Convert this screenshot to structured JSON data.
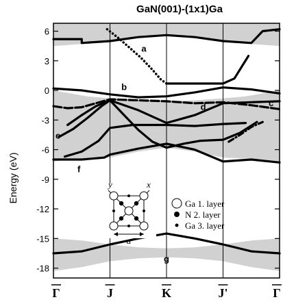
{
  "chart_data": {
    "type": "line",
    "title": "GaN(001)-(1x1)Ga",
    "ylabel": "Energy (eV)",
    "ylim": [
      -19,
      6.8
    ],
    "yticks": [
      -18,
      -15,
      -12,
      -9,
      -6,
      -3,
      0,
      3,
      6
    ],
    "kpoints": [
      {
        "label": "Γ",
        "x": 0
      },
      {
        "label": "J",
        "x": 1
      },
      {
        "label": "K",
        "x": 2
      },
      {
        "label": "J'",
        "x": 3
      },
      {
        "label": "Γ",
        "x": 4
      }
    ],
    "colors": {
      "bulk_projection": "#bdbdbd",
      "bands": "#000000"
    },
    "bulk_projection": [
      {
        "x": [
          0,
          0.5,
          1,
          1.5,
          2,
          2.5,
          3,
          3.5,
          4
        ],
        "lower": [
          4.5,
          4.7,
          5,
          5.4,
          5.6,
          5.4,
          5,
          4.7,
          4.5
        ],
        "upper": [
          6.8,
          6.8,
          6.8,
          6.8,
          6.8,
          6.8,
          6.8,
          6.8,
          6.8
        ]
      },
      {
        "x": [
          0,
          0.3,
          0.6,
          1,
          1.5,
          2,
          2.5,
          3,
          3.4,
          3.7,
          4
        ],
        "lower": [
          -7.2,
          -7,
          -6.9,
          -6.8,
          -6.2,
          -5.8,
          -6.2,
          -6.8,
          -6.9,
          -7,
          -7.2
        ],
        "upper": [
          0,
          -0.3,
          -0.6,
          -0.8,
          -1.0,
          -1.1,
          -1.0,
          -0.8,
          -0.6,
          -0.3,
          0
        ]
      },
      {
        "x": [
          0,
          0.5,
          1,
          1.5,
          2,
          2.5,
          3,
          3.5,
          4
        ],
        "lower": [
          -18.3,
          -17.9,
          -17.3,
          -17.0,
          -16.9,
          -17.0,
          -17.3,
          -17.9,
          -18.3
        ],
        "upper": [
          -15.0,
          -15.2,
          -15.6,
          -15.9,
          -16.0,
          -15.9,
          -15.6,
          -15.2,
          -15.0
        ]
      }
    ],
    "bands": [
      {
        "name": "a",
        "style": "dotted",
        "x": [
          0.95,
          1.15,
          1.35,
          1.55,
          1.75,
          1.9,
          2.0
        ],
        "y": [
          6.2,
          5.3,
          4.3,
          3.3,
          2.1,
          1.1,
          0.7
        ]
      },
      {
        "name": "a",
        "style": "solid",
        "x": [
          0,
          0.3,
          0.5,
          0.5,
          1.0,
          1.5,
          2.0,
          2.5,
          3.0,
          3.5,
          3.7,
          4.0
        ],
        "y": [
          5.2,
          5.2,
          5.2,
          4.8,
          5.0,
          5.4,
          5.6,
          5.4,
          5.0,
          4.8,
          6.0,
          6.2
        ]
      },
      {
        "name": "a",
        "style": "solid",
        "x": [
          2.0,
          2.5,
          3.0,
          3.2,
          3.45
        ],
        "y": [
          0.7,
          0.7,
          0.7,
          1.2,
          3.5
        ]
      },
      {
        "name": "b",
        "style": "solid",
        "x": [
          0,
          0.5,
          1.0,
          1.5,
          2.0,
          2.5,
          3.0,
          3.5,
          4.0
        ],
        "y": [
          0.2,
          0,
          -0.4,
          -0.7,
          -0.6,
          -0.2,
          0.3,
          0.1,
          -0.3
        ]
      },
      {
        "name": "c",
        "style": "dashed",
        "x": [
          0,
          0.25,
          0.5,
          0.75,
          1.0,
          1.5,
          2.0,
          2.5,
          3.0,
          3.5,
          4.0
        ],
        "y": [
          -1.6,
          -1.8,
          -1.7,
          -1.3,
          -0.9,
          -1.0,
          -1.1,
          -1.3,
          -1.2,
          -1.5,
          -1.9
        ]
      },
      {
        "name": "d",
        "style": "solid",
        "x": [
          0.25,
          0.5,
          0.75,
          1.0,
          1.5,
          2.0,
          2.5,
          3.0,
          3.5,
          4.0
        ],
        "y": [
          -3.5,
          -2.5,
          -1.6,
          -1.0,
          -2.0,
          -3.3,
          -2.5,
          -1.3,
          -1.2,
          -1.1
        ]
      },
      {
        "name": "e",
        "style": "solid",
        "x": [
          0.1,
          0.35,
          0.6,
          0.85,
          1.0,
          1.25,
          1.5,
          1.75,
          2.0
        ],
        "y": [
          -4.7,
          -3.9,
          -2.8,
          -1.6,
          -1.0,
          -2.5,
          -4.0,
          -5.2,
          -5.8
        ]
      },
      {
        "name": "e",
        "style": "solid",
        "x": [
          0.2,
          0.5,
          0.8,
          1.0,
          1.4,
          2.0,
          2.5,
          3.0,
          3.4
        ],
        "y": [
          -6.7,
          -6.2,
          -5.1,
          -3.8,
          -3.5,
          -3.5,
          -3.6,
          -3.4,
          -3.3
        ]
      },
      {
        "name": "e",
        "style": "solid",
        "x": [
          2.0,
          2.3,
          2.6,
          3.0,
          3.3,
          3.6
        ],
        "y": [
          -5.8,
          -5.4,
          -5.1,
          -5.0,
          -4.3,
          -3.2
        ]
      },
      {
        "name": "e",
        "style": "dash-dot",
        "x": [
          3.1,
          3.3,
          3.5,
          3.7
        ],
        "y": [
          -5.2,
          -4.5,
          -3.7,
          -3.2
        ]
      },
      {
        "name": "f",
        "style": "solid",
        "x": [
          0,
          0.5,
          0.9,
          1.0,
          1.5,
          2.0,
          2.5,
          3.0,
          3.5,
          4.0
        ],
        "y": [
          -7.0,
          -7.0,
          -6.8,
          -6.5,
          -5.9,
          -5.4,
          -6.0,
          -7.2,
          -7.0,
          -7.3
        ]
      },
      {
        "name": "g",
        "style": "solid",
        "x": [
          0,
          0.5,
          1.0,
          1.5,
          2.0,
          2.5,
          3.0,
          3.5,
          4.0
        ],
        "y": [
          -16.5,
          -16.3,
          -15.6,
          -15.0,
          -14.5,
          -15.0,
          -15.6,
          -16.3,
          -16.5
        ]
      }
    ],
    "band_labels": [
      {
        "label": "a",
        "x": 1.6,
        "y": 4.2
      },
      {
        "label": "b",
        "x": 1.25,
        "y": 0.3
      },
      {
        "label": "c",
        "x": 3.85,
        "y": -1.3
      },
      {
        "label": "d",
        "x": 2.65,
        "y": -1.7
      },
      {
        "label": "e",
        "x": 0.08,
        "y": -4.6
      },
      {
        "label": "f",
        "x": 0.45,
        "y": -8.0
      },
      {
        "label": "g",
        "x": 2.0,
        "y": -17.1
      }
    ],
    "inset": {
      "corner_labels": {
        "left": "y",
        "right": "x",
        "bottom": "a"
      },
      "legend": [
        {
          "symbol": "open-circle",
          "label": "Ga 1. layer"
        },
        {
          "symbol": "filled-circle",
          "label": "N  2. layer"
        },
        {
          "symbol": "small-dot",
          "label": "Ga 3. layer"
        }
      ]
    }
  }
}
